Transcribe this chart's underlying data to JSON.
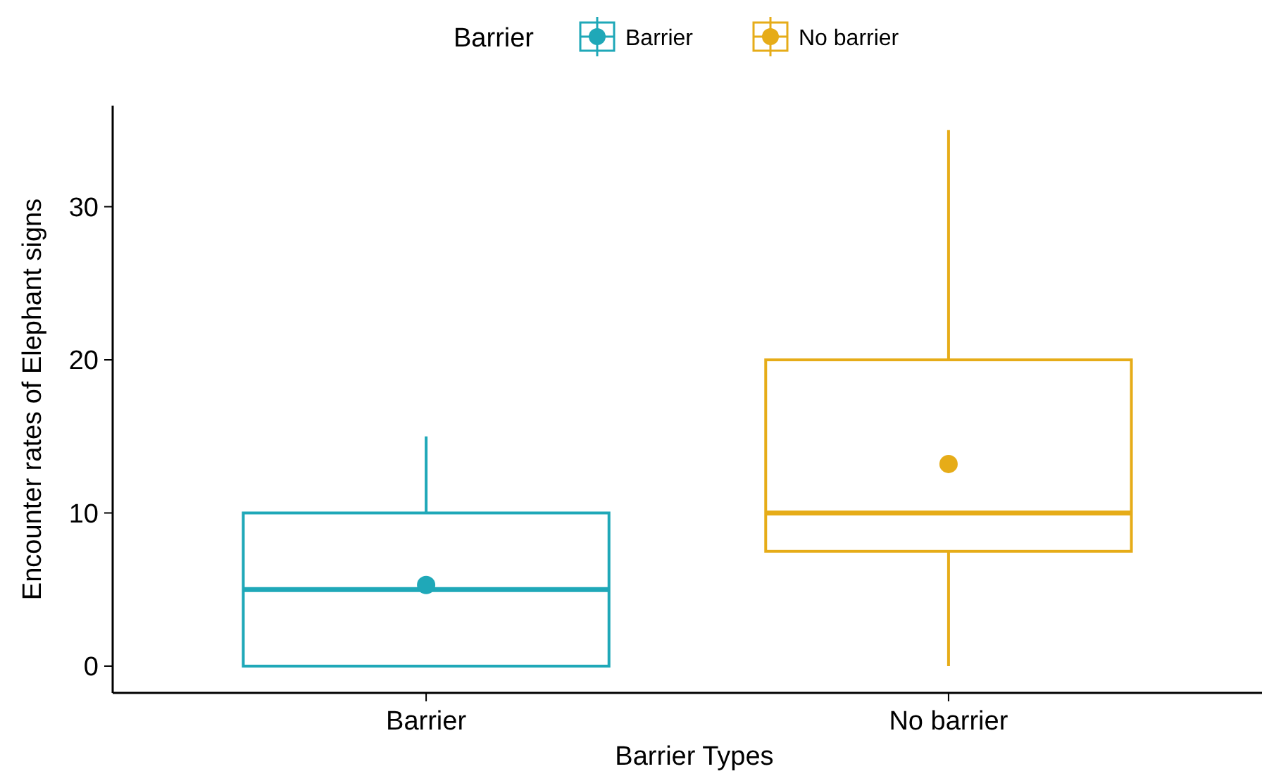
{
  "chart_data": {
    "type": "box",
    "xlabel": "Barrier Types",
    "ylabel": "Encounter rates of Elephant signs",
    "legend_title": "Barrier",
    "legend": "top",
    "categories": [
      "Barrier",
      "No barrier"
    ],
    "series": [
      {
        "name": "Barrier",
        "color": "#1fa8b8",
        "boxes": [
          {
            "low": 0,
            "q1": 0,
            "median": 5,
            "q3": 10,
            "high": 15,
            "mean": 5.3
          },
          null
        ]
      },
      {
        "name": "No barrier",
        "color": "#e6ac18",
        "boxes": [
          null,
          {
            "low": 0,
            "q1": 7.5,
            "median": 10,
            "q3": 20,
            "high": 35,
            "mean": 13.2
          }
        ]
      }
    ],
    "ylim": [
      -1.75,
      36.6
    ],
    "yticks": [
      0,
      10,
      20,
      30
    ],
    "grid": false
  }
}
